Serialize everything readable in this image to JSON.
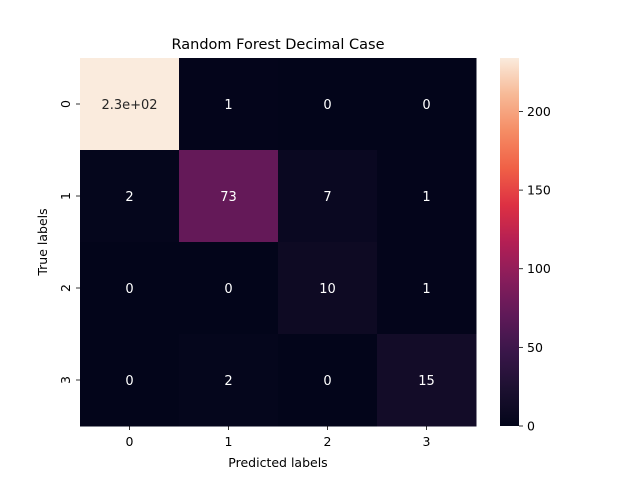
{
  "chart_data": {
    "type": "heatmap",
    "title": "Random Forest Decimal Case",
    "xlabel": "Predicted labels",
    "ylabel": "True labels",
    "x_categories": [
      "0",
      "1",
      "2",
      "3"
    ],
    "y_categories": [
      "0",
      "1",
      "2",
      "3"
    ],
    "values": [
      [
        234,
        1,
        0,
        0
      ],
      [
        2,
        73,
        7,
        1
      ],
      [
        0,
        0,
        10,
        1
      ],
      [
        0,
        2,
        0,
        15
      ]
    ],
    "annotations": [
      [
        "2.3e+02",
        "1",
        "0",
        "0"
      ],
      [
        "2",
        "73",
        "7",
        "1"
      ],
      [
        "0",
        "0",
        "10",
        "1"
      ],
      [
        "0",
        "2",
        "0",
        "15"
      ]
    ],
    "colorbar": {
      "range": [
        0,
        234
      ],
      "ticks": [
        0,
        50,
        100,
        150,
        200
      ],
      "tick_labels": [
        "0",
        "50",
        "100",
        "150",
        "200"
      ],
      "colormap": "rocket"
    },
    "grid": false,
    "legend": "colorbar-right"
  }
}
